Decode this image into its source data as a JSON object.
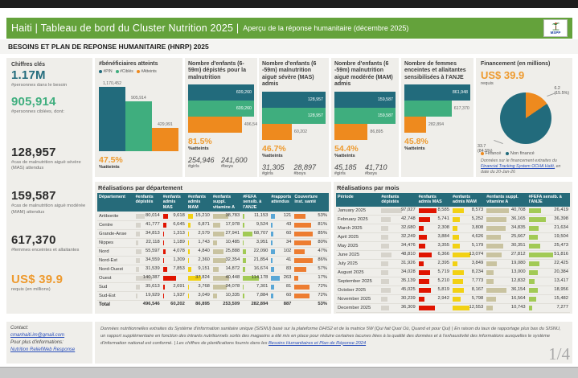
{
  "chrome": {
    "page_indicator": "1/4"
  },
  "header": {
    "title_main": "Haiti | Tableau de bord du Cluster Nutrition 2025 |",
    "title_sub": "Aperçu de la réponse humanitaire (décembre 2025)",
    "logo_label": "MSPP",
    "section_title": "BESOINS ET PLAN DE REPONSE HUMANITAIRE (HNRP) 2025"
  },
  "colors": {
    "header_green": "#64a23b",
    "teal": "#226b7c",
    "green": "#3fae7e",
    "orange": "#ee8a1e",
    "red": "#e01400",
    "yellow": "#f2d113",
    "khaki": "#c9c3a0",
    "lime": "#a2ca55",
    "blue": "#5aa7d6",
    "gray_bar": "#d6d3cb",
    "cov_orange": "#ed7d31"
  },
  "chiffres": {
    "title": "Chiffres clés",
    "items": [
      {
        "value": "1.17M",
        "label": "#personnes dans le besoin",
        "color": "teal"
      },
      {
        "value": "905,914",
        "label": "#personnes ciblées, dont:",
        "color": "green"
      },
      {
        "value": "128,957",
        "label": "#cas de malnutrition aiguë sévère (MAS) attendus",
        "color": "dark"
      },
      {
        "value": "159,587",
        "label": "#cas de malnutrition aiguë modérée (MAM) attendus",
        "color": "dark"
      },
      {
        "value": "617,370",
        "label": "#femmes enceintes et allaitantes",
        "color": "dark"
      },
      {
        "value": "US$ 39.9",
        "label": "requis (en millions)",
        "color": "orange"
      }
    ]
  },
  "chart_data": [
    {
      "id": "beneficiaires",
      "type": "bar",
      "orientation": "vertical",
      "title": "#bénéficiaires atteints",
      "legend": [
        "#PIN",
        "#Ciblés",
        "#Atteints"
      ],
      "categories": [
        "#PIN",
        "#Ciblés",
        "#Atteints"
      ],
      "values": [
        1170452,
        905914,
        429991
      ],
      "value_labels": [
        "1,170,452",
        "905,914",
        "429,991"
      ],
      "pct": "47.5%",
      "pct_label": "%atteints"
    },
    {
      "id": "depistes",
      "type": "bar",
      "orientation": "horizontal",
      "title": "Nombre d'enfants (6-59m) dépistés pour la malnutrition",
      "categories": [
        "PIN",
        "Ciblés",
        "Atteints"
      ],
      "values": [
        609260,
        609260,
        496546
      ],
      "value_labels": [
        "609,260",
        "609,260",
        "496,546"
      ],
      "pct": "81.5%",
      "pct_label": "%atteints",
      "stats": [
        {
          "value": "254,946",
          "label": "#girls"
        },
        {
          "value": "241,600",
          "label": "#boys"
        }
      ]
    },
    {
      "id": "mas-admis",
      "type": "bar",
      "orientation": "horizontal",
      "title": "Nombre d'enfants (6 -59m) malnutrition aiguë sévère (MAS) admis",
      "categories": [
        "PIN",
        "Ciblés",
        "Atteints"
      ],
      "values": [
        128957,
        128957,
        60202
      ],
      "value_labels": [
        "128,957",
        "128,957",
        "60,202"
      ],
      "pct": "46.7%",
      "pct_label": "%atteints",
      "stats": [
        {
          "value": "31,305",
          "label": "#girls"
        },
        {
          "value": "28,897",
          "label": "#boys"
        }
      ]
    },
    {
      "id": "mam-admis",
      "type": "bar",
      "orientation": "horizontal",
      "title": "Nombre d'enfants (6 -59m) malnutrition aiguë modérée (MAM) admis",
      "categories": [
        "PIN",
        "Ciblés",
        "Atteints"
      ],
      "values": [
        159587,
        159587,
        86895
      ],
      "value_labels": [
        "159,587",
        "159,587",
        "86,895"
      ],
      "pct": "54.4%",
      "pct_label": "%atteints",
      "stats": [
        {
          "value": "45,185",
          "label": "#girls"
        },
        {
          "value": "41,710",
          "label": "#boys"
        }
      ]
    },
    {
      "id": "fefa-anje",
      "type": "bar",
      "orientation": "horizontal",
      "title": "Nombre de femmes enceintes et allaitantes sensibilisées à l'ANJE",
      "categories": [
        "PIN",
        "Ciblés",
        "Atteints"
      ],
      "values": [
        861948,
        617370,
        282894
      ],
      "value_labels": [
        "861,948",
        "617,370",
        "282,894"
      ],
      "pct": "45.8%",
      "pct_label": "%atteints"
    },
    {
      "id": "financement",
      "type": "pie",
      "title": "Financement (en millions)",
      "slices": [
        {
          "label": "Financé",
          "value": 6.2,
          "pct": 15.5,
          "color": "#ee8a1e",
          "callout_line1": "6.2",
          "callout_line2": "(15.5%)"
        },
        {
          "label": "Non financé",
          "value": 33.7,
          "pct": 84.5,
          "color": "#226b7c",
          "callout_line1": "33.7",
          "callout_line2": "(84.5%)"
        }
      ]
    }
  ],
  "financement": {
    "amount": "US$ 39.9",
    "amount_label": "requis",
    "source_prefix": "Données sur le financement extraites du ",
    "source_link": "Financial Tracking System OCHA  Haïti,",
    "source_suffix": " en date du 20-Jan-26"
  },
  "dept_table": {
    "title": "Réalisations par département",
    "headers": [
      "Département",
      "#enfants dépistés",
      "#enfants admis MAS",
      "#enfants admis MAM",
      "#enfants suppl. vitamine A",
      "#FEFA sensib. à l'ANJE",
      "#rapports attendus",
      "Couverture inst. santé"
    ],
    "rows": [
      {
        "name": "Artibonite",
        "cells": [
          "80,014",
          "9,618",
          "15,210",
          "38,783",
          "11,153",
          "121"
        ],
        "nums": [
          80014,
          9618,
          15210,
          38783,
          11153,
          121
        ],
        "cov": "53%",
        "cov_n": 53
      },
      {
        "name": "Centre",
        "cells": [
          "41,777",
          "6,645",
          "6,871",
          "17,978",
          "9,524",
          "43"
        ],
        "nums": [
          41777,
          6645,
          6871,
          17978,
          9524,
          43
        ],
        "cov": "81%",
        "cov_n": 81
      },
      {
        "name": "Grande-Anse",
        "cells": [
          "34,813",
          "1,313",
          "2,579",
          "27,941",
          "68,707",
          "60"
        ],
        "nums": [
          34813,
          1313,
          2579,
          27941,
          68707,
          60
        ],
        "cov": "85%",
        "cov_n": 85
      },
      {
        "name": "Nippes",
        "cells": [
          "22,118",
          "1,189",
          "1,743",
          "10,485",
          "3,951",
          "34"
        ],
        "nums": [
          22118,
          1189,
          1743,
          10485,
          3951,
          34
        ],
        "cov": "80%",
        "cov_n": 80
      },
      {
        "name": "Nord",
        "cells": [
          "55,597",
          "4,078",
          "4,840",
          "25,888",
          "22,090",
          "102"
        ],
        "nums": [
          55597,
          4078,
          4840,
          25888,
          22090,
          102
        ],
        "cov": "47%",
        "cov_n": 47
      },
      {
        "name": "Nord-Est",
        "cells": [
          "34,559",
          "1,309",
          "2,360",
          "32,354",
          "21,854",
          "41"
        ],
        "nums": [
          34559,
          1309,
          2360,
          32354,
          21854,
          41
        ],
        "cov": "86%",
        "cov_n": 86
      },
      {
        "name": "Nord-Ouest",
        "cells": [
          "31,539",
          "7,853",
          "9,151",
          "14,872",
          "16,674",
          "83"
        ],
        "nums": [
          31539,
          7853,
          9151,
          14872,
          16674,
          83
        ],
        "cov": "57%",
        "cov_n": 57
      },
      {
        "name": "Ouest",
        "cells": [
          "140,387",
          "",
          "37,824",
          "40,448",
          "114,178",
          "263"
        ],
        "nums": [
          140387,
          23569,
          37824,
          40448,
          114178,
          263
        ],
        "cov": "17%",
        "cov_n": 17
      },
      {
        "name": "Sud",
        "cells": [
          "35,613",
          "2,691",
          "3,768",
          "34,078",
          "7,301",
          "81"
        ],
        "nums": [
          35613,
          2691,
          3768,
          34078,
          7301,
          81
        ],
        "cov": "72%",
        "cov_n": 72
      },
      {
        "name": "Sud-Est",
        "cells": [
          "19,929",
          "1,937",
          "3,049",
          "10,335",
          "7,884",
          "60"
        ],
        "nums": [
          19929,
          1937,
          3049,
          10335,
          7884,
          60
        ],
        "cov": "72%",
        "cov_n": 72
      }
    ],
    "total": {
      "name": "Total",
      "cells": [
        "496,546",
        "60,202",
        "86,895",
        "253,509",
        "282,894",
        "887"
      ],
      "cov": "53%"
    }
  },
  "month_table": {
    "title": "Réalisations par mois",
    "headers": [
      "Période",
      "#enfants dépistés",
      "#enfants admis MAS",
      "#enfants admis MAM",
      "#enfants suppl. vitamine A",
      "#FEFA sensib. à l'ANJE"
    ],
    "rows": [
      {
        "name": "January 2025",
        "cells": [
          "97,027",
          "8,585",
          "8,573",
          "40,708",
          "26,419"
        ],
        "nums": [
          97027,
          8585,
          8573,
          40708,
          26419
        ]
      },
      {
        "name": "February 2025",
        "cells": [
          "42,748",
          "5,741",
          "5,252",
          "36,165",
          "36,398"
        ],
        "nums": [
          42748,
          5741,
          5252,
          36165,
          36398
        ]
      },
      {
        "name": "March 2025",
        "cells": [
          "32,680",
          "2,308",
          "3,808",
          "34,835",
          "21,634"
        ],
        "nums": [
          32680,
          2308,
          3808,
          34835,
          21634
        ]
      },
      {
        "name": "April 2025",
        "cells": [
          "32,249",
          "3,884",
          "4,626",
          "25,667",
          "19,504"
        ],
        "nums": [
          32249,
          3884,
          4626,
          25667,
          19504
        ]
      },
      {
        "name": "May 2025",
        "cells": [
          "34,476",
          "3,355",
          "5,179",
          "30,351",
          "25,473"
        ],
        "nums": [
          34476,
          3355,
          5179,
          30351,
          25473
        ]
      },
      {
        "name": "June 2025",
        "cells": [
          "48,810",
          "6,366",
          "13,074",
          "27,812",
          "51,816"
        ],
        "nums": [
          48810,
          6366,
          13074,
          27812,
          51816
        ]
      },
      {
        "name": "July 2025",
        "cells": [
          "31,926",
          "2,395",
          "3,849",
          "19,080",
          "22,425"
        ],
        "nums": [
          31926,
          2395,
          3849,
          19080,
          22425
        ]
      },
      {
        "name": "August 2025",
        "cells": [
          "34,028",
          "5,719",
          "8,234",
          "13,000",
          "20,384"
        ],
        "nums": [
          34028,
          5719,
          8234,
          13000,
          20384
        ]
      },
      {
        "name": "September 2025",
        "cells": [
          "35,139",
          "5,210",
          "7,773",
          "12,832",
          "13,417"
        ],
        "nums": [
          35139,
          5210,
          7773,
          12832,
          13417
        ]
      },
      {
        "name": "October 2025",
        "cells": [
          "45,025",
          "5,819",
          "8,167",
          "36,154",
          "18,956"
        ],
        "nums": [
          45025,
          5819,
          8167,
          36154,
          18956
        ]
      },
      {
        "name": "November 2025",
        "cells": [
          "30,239",
          "2,942",
          "5,798",
          "16,564",
          "15,482"
        ],
        "nums": [
          30239,
          2942,
          5798,
          16564,
          15482
        ]
      },
      {
        "name": "December 2025",
        "cells": [
          "36,309",
          "",
          "12,553",
          "10,743",
          "7,277"
        ],
        "nums": [
          36309,
          7878,
          12553,
          10743,
          7277
        ]
      }
    ],
    "total": {
      "name": "Total",
      "cells": [
        "496,546",
        "60,202",
        "86,895",
        "253,509",
        "282,894"
      ]
    }
  },
  "footer": {
    "contact_label": "Contact:",
    "contact_email": "cmanhaiti.im@gmail.com",
    "more_info_label": "Pour plus d'informations:",
    "more_info_link": "Nutrition ReliefWeb Response",
    "note_part1": "Données nutritionnelles extraites du Système d'information sanitaire unique (SISNU) basé sur la plateforme DHIS2 et de la matrice 5W (Qui fait Quoi Où, Quand et pour Qui) | En raison du taux de rapportage plus bas du SISNU, un rapport supplémentaire en fonction des intrants nutritionnels sortis des magasins a été mis en place pour réduire certaines lacunes liées à la qualité des données et à l'exhaustivité des informations auxquelles le système d'information national est conformé. | Les chiffres de planifications fournis dans les ",
    "note_link": "Besoins Humanitaires et Plan de Réponse 2024"
  }
}
